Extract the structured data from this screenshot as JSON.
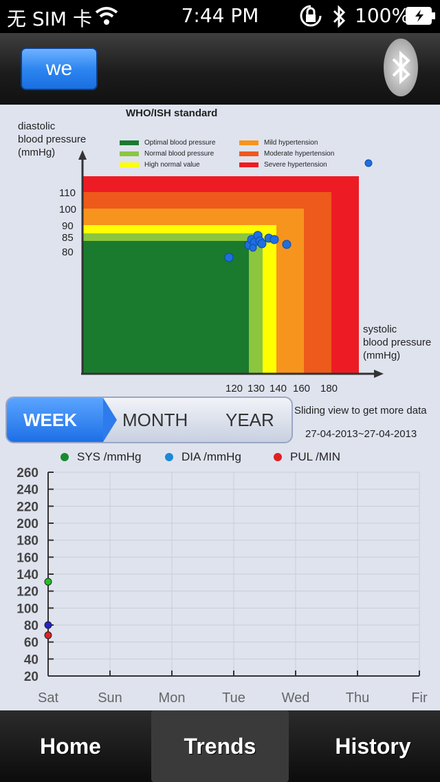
{
  "status_bar": {
    "carrier": "无 SIM 卡",
    "time": "7:44 PM",
    "battery": "100%",
    "icons": [
      "wifi-icon",
      "rotation-lock-icon",
      "bluetooth-icon",
      "battery-icon"
    ]
  },
  "nav": {
    "user_button": "we",
    "bluetooth_icon": "bluetooth-icon"
  },
  "who_chart": {
    "title": "WHO/ISH standard",
    "ylabel": "diastolic\nblood pressure\n(mmHg)",
    "xlabel": "systolic\nblood pressure\n(mmHg)",
    "legend": [
      {
        "label": "Optimal blood pressure",
        "color": "#1a7a2e"
      },
      {
        "label": "Normal blood pressure",
        "color": "#8cc63f"
      },
      {
        "label": "High normal value",
        "color": "#ffff00"
      },
      {
        "label": "Mild hypertension",
        "color": "#f7941d"
      },
      {
        "label": "Moderate hypertension",
        "color": "#ed5a1b"
      },
      {
        "label": "Severe hypertension",
        "color": "#ed1c24"
      }
    ],
    "yticks": [
      "110",
      "100",
      "90",
      "85",
      "80"
    ],
    "xticks": [
      "120",
      "130",
      "140",
      "160",
      "180"
    ]
  },
  "period": {
    "week": "WEEK",
    "month": "MONTH",
    "year": "YEAR",
    "selected": "WEEK"
  },
  "hint": "Sliding view to get more data",
  "date_range": "27-04-2013~27-04-2013",
  "trend_legend": [
    {
      "label": "SYS /mmHg",
      "color": "#1a8a2e"
    },
    {
      "label": "DIA /mmHg",
      "color": "#1e88d8"
    },
    {
      "label": "PUL /MIN",
      "color": "#e02020"
    }
  ],
  "chart_data": {
    "type": "line",
    "categories": [
      "Sat",
      "Sun",
      "Mon",
      "Tue",
      "Wed",
      "Thu",
      "Fir"
    ],
    "ylim": [
      20,
      260
    ],
    "yticks": [
      260,
      240,
      220,
      200,
      180,
      160,
      140,
      120,
      100,
      80,
      60,
      40,
      20
    ],
    "grid": true,
    "series": [
      {
        "name": "SYS /mmHg",
        "color": "#22c022",
        "values": [
          131,
          null,
          null,
          null,
          null,
          null,
          null
        ]
      },
      {
        "name": "DIA /mmHg",
        "color": "#2222cc",
        "values": [
          80,
          null,
          null,
          null,
          null,
          null,
          null
        ]
      },
      {
        "name": "PUL /MIN",
        "color": "#dd2222",
        "values": [
          68,
          null,
          null,
          null,
          null,
          null,
          null
        ]
      }
    ]
  },
  "tabs": [
    {
      "label": "Home",
      "active": false
    },
    {
      "label": "Trends",
      "active": true
    },
    {
      "label": "History",
      "active": false
    }
  ]
}
